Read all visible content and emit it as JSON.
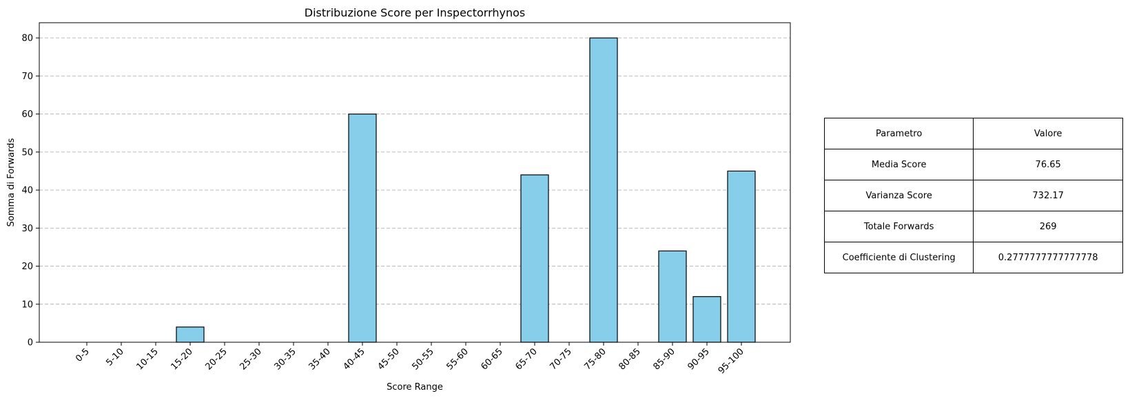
{
  "chart_data": {
    "type": "bar",
    "title": "Distribuzione Score per Inspectorrhynos",
    "xlabel": "Score Range",
    "ylabel": "Somma di Forwards",
    "categories": [
      "0-5",
      "5-10",
      "10-15",
      "15-20",
      "20-25",
      "25-30",
      "30-35",
      "35-40",
      "40-45",
      "45-50",
      "50-55",
      "55-60",
      "60-65",
      "65-70",
      "70-75",
      "75-80",
      "80-85",
      "85-90",
      "90-95",
      "95-100"
    ],
    "values": [
      0,
      0,
      0,
      4,
      0,
      0,
      0,
      0,
      60,
      0,
      0,
      0,
      0,
      44,
      0,
      80,
      0,
      24,
      12,
      45
    ],
    "ylim": [
      0,
      84
    ],
    "yticks": [
      0,
      10,
      20,
      30,
      40,
      50,
      60,
      70,
      80
    ],
    "grid": "y-dashed",
    "bar_color": "#87ceeb",
    "edge_color": "#000000"
  },
  "table": {
    "headers": [
      "Parametro",
      "Valore"
    ],
    "rows": [
      [
        "Media Score",
        "76.65"
      ],
      [
        "Varianza Score",
        "732.17"
      ],
      [
        "Totale Forwards",
        "269"
      ],
      [
        "Coefficiente di Clustering",
        "0.2777777777777778"
      ]
    ]
  }
}
